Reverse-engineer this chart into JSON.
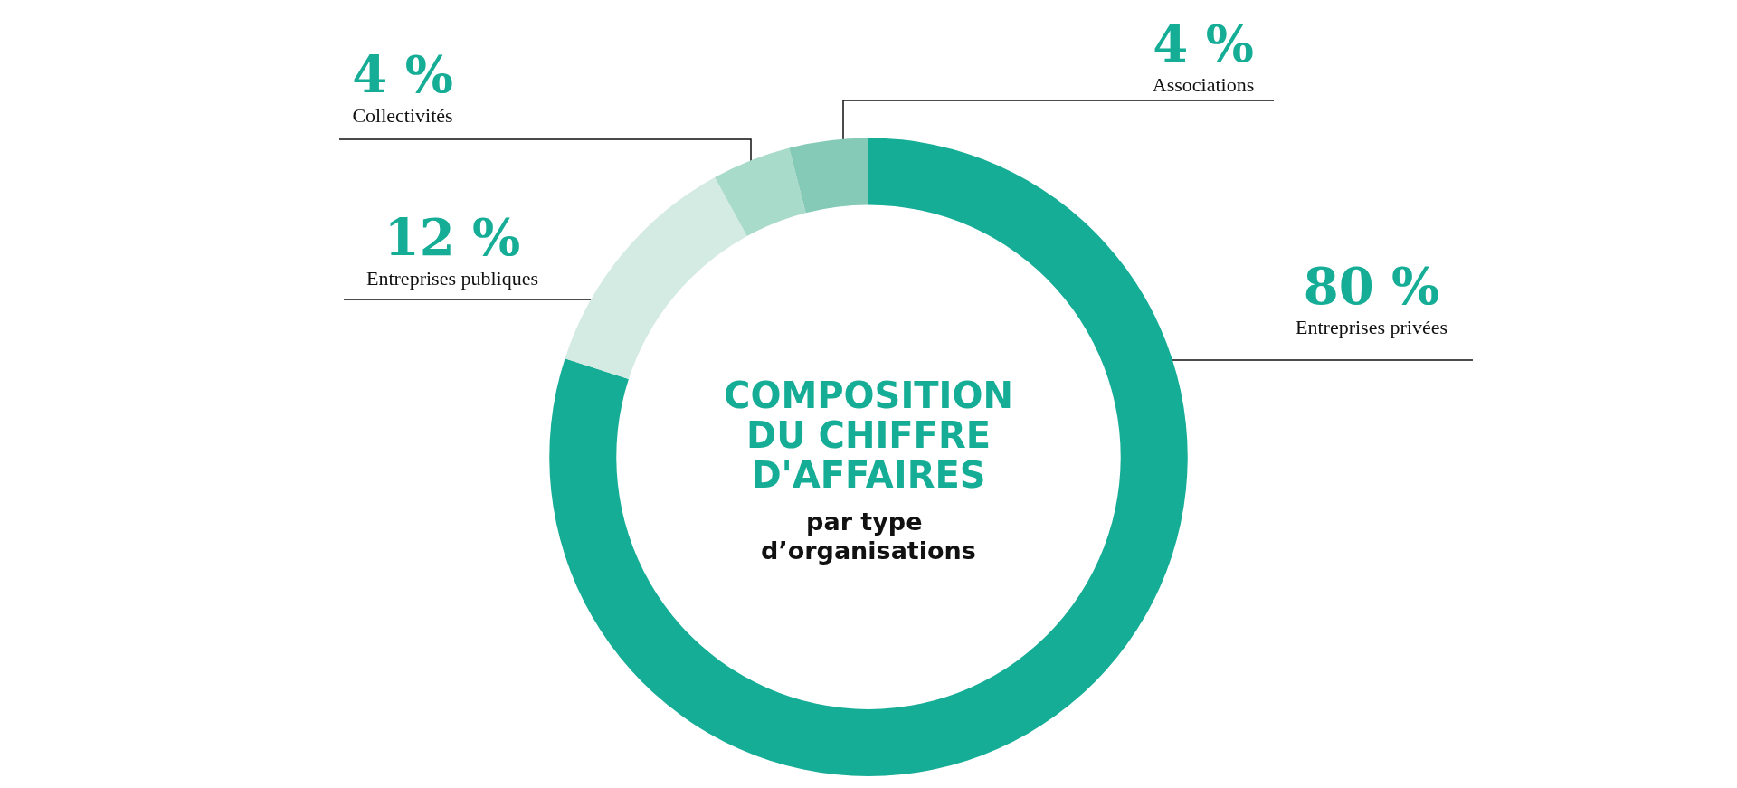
{
  "chart_data": {
    "type": "donut",
    "title": "COMPOSITION DU CHIFFRE D'AFFAIRES",
    "subtitle": "par type d’organisations",
    "categories": [
      "Entreprises privées",
      "Entreprises publiques",
      "Collectivités",
      "Associations"
    ],
    "values": [
      80,
      12,
      4,
      4
    ],
    "colors": [
      "#16ad96",
      "#d4ebe3",
      "#a9dbca",
      "#85c9b7"
    ],
    "value_labels": [
      "80 %",
      "12 %",
      "4 %",
      "4 %"
    ],
    "legend": false
  }
}
